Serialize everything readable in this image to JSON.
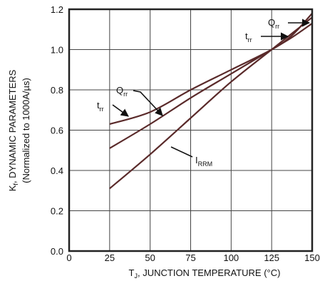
{
  "chart_data": {
    "type": "line",
    "title": "",
    "xlabel": {
      "main": "T",
      "sub": "J",
      "rest": ", JUNCTION TEMPERATURE (°C)"
    },
    "ylabel": {
      "line1": {
        "main": "K",
        "sub": "f",
        "rest": ", DYNAMIC PARAMETERS"
      },
      "line2": "(Normalized  to 1000A/µs)"
    },
    "xlim": [
      0,
      150
    ],
    "ylim": [
      0,
      1.2
    ],
    "xticks": [
      0,
      25,
      50,
      75,
      100,
      125,
      150
    ],
    "yticks": [
      0.0,
      0.2,
      0.4,
      0.6,
      0.8,
      1.0,
      1.2
    ],
    "xtick_labels": [
      "0",
      "25",
      "50",
      "75",
      "100",
      "125",
      "150"
    ],
    "ytick_labels": [
      "0.0",
      "0.2",
      "0.4",
      "0.6",
      "0.8",
      "1.0",
      "1.2"
    ],
    "grid": true,
    "line_color": "#5a2a2a",
    "series": [
      {
        "name": "trr",
        "label_main": "t",
        "label_sub": "rr",
        "x": [
          25,
          50,
          75,
          100,
          125,
          137.5,
          150
        ],
        "y": [
          0.63,
          0.69,
          0.8,
          0.9,
          1.0,
          1.07,
          1.18
        ]
      },
      {
        "name": "Qrr",
        "label_main": "Q",
        "label_sub": "rr",
        "x": [
          25,
          50,
          75,
          100,
          125,
          137.5,
          150
        ],
        "y": [
          0.51,
          0.63,
          0.76,
          0.88,
          1.0,
          1.06,
          1.13
        ]
      },
      {
        "name": "IRRM",
        "label_main": "I",
        "label_sub": "RRM",
        "x": [
          25,
          50,
          75,
          100,
          125,
          137.5,
          150
        ],
        "y": [
          0.31,
          0.48,
          0.66,
          0.84,
          1.0,
          1.08,
          1.16
        ]
      }
    ]
  }
}
